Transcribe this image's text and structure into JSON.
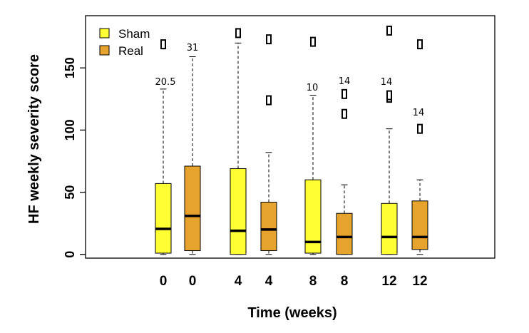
{
  "chart_data": {
    "type": "boxplot",
    "xlabel": "Time (weeks)",
    "ylabel": "HF weekly severity score",
    "ylim": [
      -3,
      192
    ],
    "yticks": [
      0,
      50,
      100,
      150
    ],
    "legend": {
      "placement": "top-left",
      "entries": [
        {
          "name": "Sham",
          "color": "#ffff33"
        },
        {
          "name": "Real",
          "color": "#e6a32e"
        }
      ]
    },
    "colors": {
      "Sham": "#ffff33",
      "Real": "#e6a32e"
    },
    "boxes": [
      {
        "label": "0",
        "group": "Sham",
        "whisker_low": 0,
        "q1": 1,
        "median": 20.5,
        "q3": 57,
        "whisker_high": 133,
        "outliers": [
          169
        ],
        "annotation": "20.5"
      },
      {
        "label": "0",
        "group": "Real",
        "whisker_low": 0,
        "q1": 3,
        "median": 31,
        "q3": 71,
        "whisker_high": 159,
        "outliers": [],
        "annotation": "31"
      },
      {
        "label": "4",
        "group": "Sham",
        "whisker_low": 0,
        "q1": 0,
        "median": 19,
        "q3": 69,
        "whisker_high": 170,
        "outliers": [
          178
        ],
        "annotation": ""
      },
      {
        "label": "4",
        "group": "Real",
        "whisker_low": 0,
        "q1": 3,
        "median": 20,
        "q3": 42,
        "whisker_high": 82,
        "outliers": [
          124,
          173
        ],
        "annotation": ""
      },
      {
        "label": "8",
        "group": "Sham",
        "whisker_low": 0,
        "q1": 1,
        "median": 10,
        "q3": 60,
        "whisker_high": 128,
        "outliers": [
          171
        ],
        "annotation": "10"
      },
      {
        "label": "8",
        "group": "Real",
        "whisker_low": 0,
        "q1": 0,
        "median": 14,
        "q3": 33,
        "whisker_high": 56,
        "outliers": [
          113,
          129
        ],
        "annotation": "14"
      },
      {
        "label": "12",
        "group": "Sham",
        "whisker_low": 0,
        "q1": 0,
        "median": 14,
        "q3": 41,
        "whisker_high": 101,
        "outliers": [
          126,
          128,
          180
        ],
        "annotation": "14"
      },
      {
        "label": "12",
        "group": "Real",
        "whisker_low": 0,
        "q1": 4,
        "median": 14,
        "q3": 43,
        "whisker_high": 60,
        "outliers": [
          101,
          169
        ],
        "annotation": "14"
      }
    ]
  }
}
